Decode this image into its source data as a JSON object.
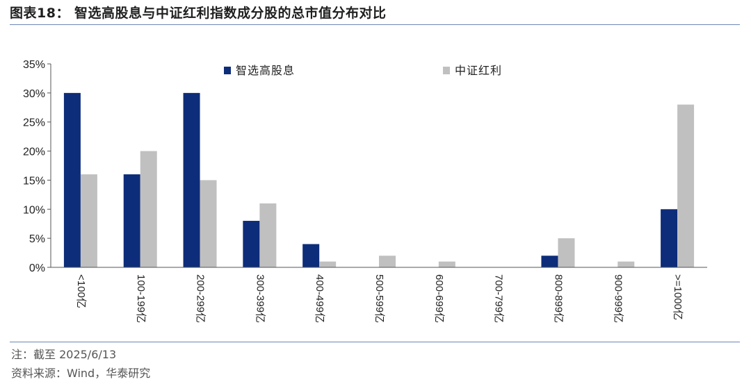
{
  "figure": {
    "title": "图表18：  智选高股息与中证红利指数成分股的总市值分布对比",
    "note": "注：截至 2025/6/13",
    "source": "资料来源：Wind，华泰研究"
  },
  "chart_data": {
    "type": "bar",
    "title": "",
    "xlabel": "",
    "ylabel": "",
    "ylim": [
      0,
      35
    ],
    "yticks": [
      "0%",
      "5%",
      "10%",
      "15%",
      "20%",
      "25%",
      "30%",
      "35%"
    ],
    "categories": [
      "<100亿",
      "100-199亿",
      "200-299亿",
      "300-399亿",
      "400-499亿",
      "500-599亿",
      "600-699亿",
      "700-799亿",
      "800-899亿",
      "900-999亿",
      ">=1000亿"
    ],
    "series": [
      {
        "name": "智选高股息",
        "color": "#0d2d7a",
        "values": [
          30,
          16,
          30,
          8,
          4,
          0,
          0,
          0,
          2,
          0,
          10
        ]
      },
      {
        "name": "中证红利",
        "color": "#c0c0c0",
        "values": [
          16,
          20,
          15,
          11,
          1,
          2,
          1,
          0,
          5,
          1,
          28
        ]
      }
    ],
    "legend_position": "top",
    "grid": false
  }
}
